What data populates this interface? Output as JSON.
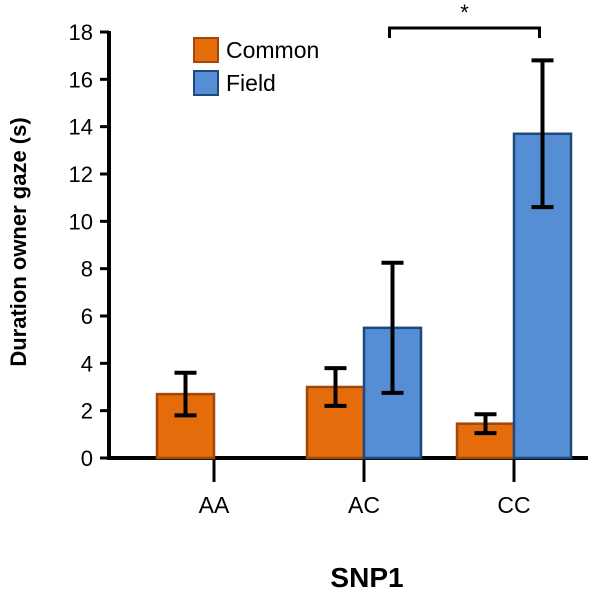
{
  "chart_data": {
    "type": "bar",
    "title": "",
    "xlabel": "SNP1",
    "ylabel": "Duration owner gaze (s)",
    "ylim": [
      0,
      18
    ],
    "yticks": [
      0,
      2,
      4,
      6,
      8,
      10,
      12,
      14,
      16,
      18
    ],
    "categories": [
      "AA",
      "AC",
      "CC"
    ],
    "series": [
      {
        "name": "Common",
        "color": "#e46c0a",
        "edge": "#a0470a",
        "values": [
          2.7,
          3.0,
          1.45
        ],
        "error": [
          0.9,
          0.8,
          0.4
        ]
      },
      {
        "name": "Field",
        "color": "#558ed5",
        "edge": "#1f497d",
        "values": [
          null,
          5.5,
          13.7
        ],
        "error": [
          null,
          2.75,
          3.1
        ]
      }
    ],
    "legend": {
      "position": "top-left"
    },
    "grid": false,
    "annotations": [
      {
        "text": "*",
        "from_category": "AC",
        "to_category": "CC",
        "level": 18
      }
    ]
  }
}
